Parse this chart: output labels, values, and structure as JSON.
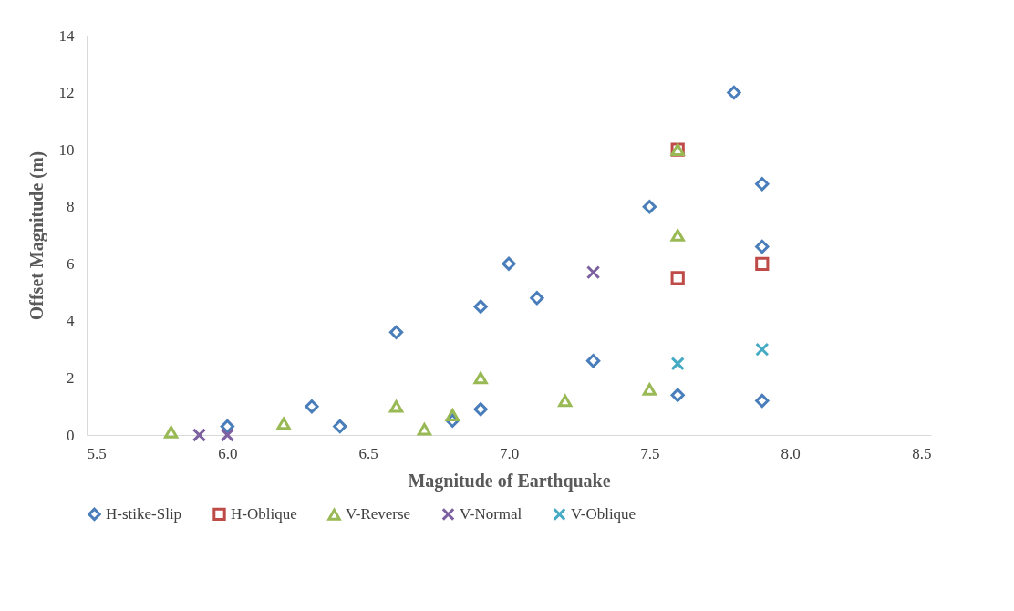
{
  "chart_data": {
    "type": "scatter",
    "xlabel": "Magnitude of Earthquake",
    "ylabel": "Offset Magnitude (m)",
    "xlim": [
      5.5,
      8.5
    ],
    "xticks": [
      5.5,
      {
        "value": 6,
        "label": "6.0"
      },
      6.5,
      {
        "value": 7,
        "label": "7.0"
      },
      7.5,
      {
        "value": 8,
        "label": "8.0"
      },
      8.5
    ],
    "ylim": [
      0,
      14
    ],
    "yticks": [
      0,
      2,
      4,
      6,
      8,
      10,
      12,
      14
    ],
    "grid": false,
    "legend": "bottom",
    "series": [
      {
        "name": "H-stike-Slip",
        "color": "#4a7ebb",
        "marker": "diamond",
        "x": [
          6.0,
          6.3,
          6.4,
          6.6,
          6.8,
          6.9,
          6.9,
          7.0,
          7.1,
          7.3,
          7.5,
          7.6,
          7.8,
          7.9,
          7.9,
          7.9
        ],
        "values": [
          0.3,
          1.0,
          0.3,
          3.6,
          0.5,
          0.9,
          4.5,
          6.0,
          4.8,
          2.6,
          8.0,
          1.4,
          12.0,
          8.8,
          6.6,
          1.2
        ]
      },
      {
        "name": "H-Oblique",
        "color": "#be4b48",
        "marker": "square",
        "x": [
          7.6,
          7.6,
          7.9
        ],
        "values": [
          10.0,
          5.5,
          6.0
        ]
      },
      {
        "name": "V-Reverse",
        "color": "#98b954",
        "marker": "triangle",
        "x": [
          5.8,
          6.2,
          6.6,
          6.7,
          6.8,
          6.9,
          7.2,
          7.5,
          7.6,
          7.6
        ],
        "values": [
          0.1,
          0.4,
          1.0,
          0.2,
          0.7,
          2.0,
          1.2,
          1.6,
          10.0,
          7.0
        ]
      },
      {
        "name": "V-Normal",
        "color": "#7d60a0",
        "marker": "cross",
        "x": [
          5.9,
          6.0,
          7.3
        ],
        "values": [
          0.0,
          0.0,
          5.7
        ]
      },
      {
        "name": "V-Oblique",
        "color": "#46aac5",
        "marker": "cross",
        "x": [
          7.6,
          7.9
        ],
        "values": [
          2.5,
          3.0
        ]
      }
    ]
  }
}
